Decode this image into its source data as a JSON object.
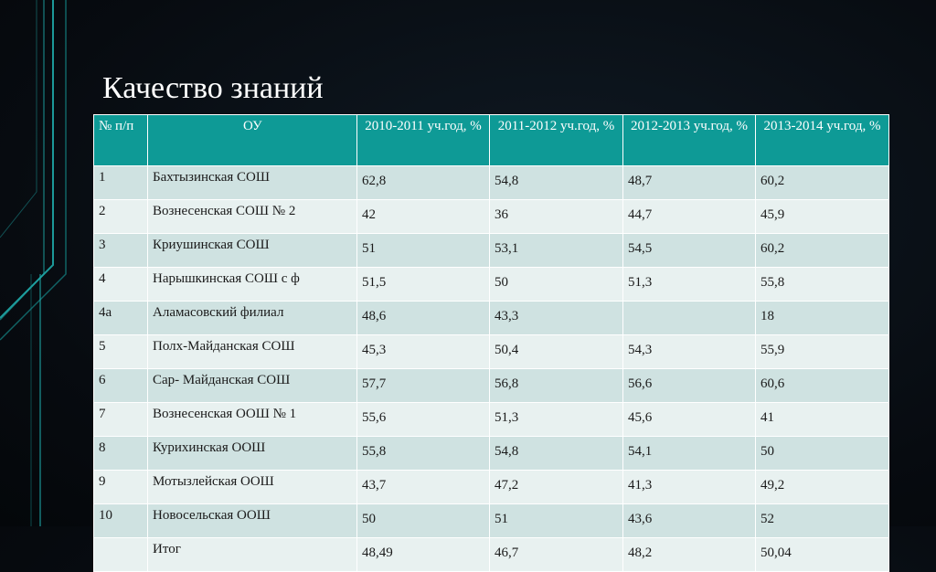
{
  "slide": {
    "title": "Качество знаний"
  },
  "colors": {
    "header_bg": "#0e9a96",
    "row_odd": "#cfe2e1",
    "row_even": "#e8f1f0",
    "accent_line": "#1fa8a8"
  },
  "table": {
    "headers": {
      "num": "№ п/п",
      "school": "ОУ",
      "y1": "2010-2011 уч.год, %",
      "y2": "2011-2012 уч.год, %",
      "y3": "2012-2013 уч.год, %",
      "y4": "2013-2014 уч.год, %"
    },
    "rows": [
      {
        "num": "1",
        "school": "Бахтызинская СОШ",
        "y1": "62,8",
        "y2": "54,8",
        "y3": "48,7",
        "y4": "60,2"
      },
      {
        "num": "2",
        "school": "Вознесенская СОШ № 2",
        "y1": "42",
        "y2": "36",
        "y3": "44,7",
        "y4": "45,9"
      },
      {
        "num": "3",
        "school": "Криушинская СОШ",
        "y1": "51",
        "y2": "53,1",
        "y3": "54,5",
        "y4": "60,2"
      },
      {
        "num": "4",
        "school": "Нарышкинская СОШ с ф",
        "y1": "51,5",
        "y2": "50",
        "y3": "51,3",
        "y4": "55,8"
      },
      {
        "num": "4а",
        "school": "Аламасовский филиал",
        "y1": "48,6",
        "y2": "43,3",
        "y3": "",
        "y4": "18"
      },
      {
        "num": "5",
        "school": "Полх-Майданская СОШ",
        "y1": "45,3",
        "y2": "50,4",
        "y3": "54,3",
        "y4": "55,9"
      },
      {
        "num": "6",
        "school": "Сар- Майданская СОШ",
        "y1": "57,7",
        "y2": "56,8",
        "y3": "56,6",
        "y4": "60,6"
      },
      {
        "num": "7",
        "school": "Вознесенская ООШ № 1",
        "y1": "55,6",
        "y2": "51,3",
        "y3": "45,6",
        "y4": "41"
      },
      {
        "num": "8",
        "school": "Курихинская ООШ",
        "y1": "55,8",
        "y2": "54,8",
        "y3": "54,1",
        "y4": "50"
      },
      {
        "num": "9",
        "school": "Мотызлейская ООШ",
        "y1": "43,7",
        "y2": "47,2",
        "y3": "41,3",
        "y4": "49,2"
      },
      {
        "num": "10",
        "school": "Новосельская ООШ",
        "y1": "50",
        "y2": "51",
        "y3": "43,6",
        "y4": "52"
      },
      {
        "num": "",
        "school": "Итог",
        "y1": "48,49",
        "y2": "46,7",
        "y3": "48,2",
        "y4": "50,04"
      }
    ]
  }
}
